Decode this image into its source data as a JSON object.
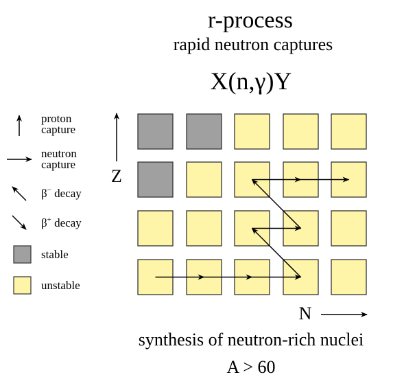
{
  "title": "r-process",
  "subtitle": "rapid neutron captures",
  "reaction": "X(n,γ)Y",
  "footer_line1": "synthesis of neutron-rich nuclei",
  "footer_line2": "A > 60",
  "axes": {
    "z_label": "Z",
    "n_label": "N"
  },
  "legend": {
    "proton_capture": [
      "proton",
      "capture"
    ],
    "neutron_capture": [
      "neutron",
      "capture"
    ],
    "beta_minus": {
      "symbol": "β",
      "sup": "−",
      "text": " decay"
    },
    "beta_plus": {
      "symbol": "β",
      "sup": "+",
      "text": " decay"
    },
    "stable": "stable",
    "unstable": "unstable"
  },
  "colors": {
    "stable": "#a0a0a0",
    "unstable": "#fff5a8",
    "outline": "#333333"
  },
  "grid": {
    "rows": [
      [
        "stable",
        "stable",
        "unstable",
        "unstable",
        "unstable"
      ],
      [
        "stable",
        "unstable",
        "unstable",
        "unstable",
        "unstable"
      ],
      [
        "unstable",
        "unstable",
        "unstable",
        "unstable",
        "unstable"
      ],
      [
        "unstable",
        "unstable",
        "unstable",
        "unstable",
        "unstable"
      ]
    ]
  },
  "process_path": [
    {
      "type": "neutron-capture",
      "from": [
        0,
        3
      ],
      "to": [
        1,
        3
      ]
    },
    {
      "type": "neutron-capture",
      "from": [
        1,
        3
      ],
      "to": [
        2,
        3
      ]
    },
    {
      "type": "neutron-capture",
      "from": [
        2,
        3
      ],
      "to": [
        3,
        3
      ]
    },
    {
      "type": "beta-decay",
      "from": [
        3,
        3
      ],
      "to": [
        2,
        2
      ]
    },
    {
      "type": "neutron-capture",
      "from": [
        2,
        2
      ],
      "to": [
        3,
        2
      ]
    },
    {
      "type": "beta-decay",
      "from": [
        3,
        2
      ],
      "to": [
        2,
        1
      ]
    },
    {
      "type": "neutron-capture",
      "from": [
        2,
        1
      ],
      "to": [
        3,
        1
      ]
    },
    {
      "type": "neutron-capture",
      "from": [
        3,
        1
      ],
      "to": [
        4,
        1
      ]
    }
  ]
}
